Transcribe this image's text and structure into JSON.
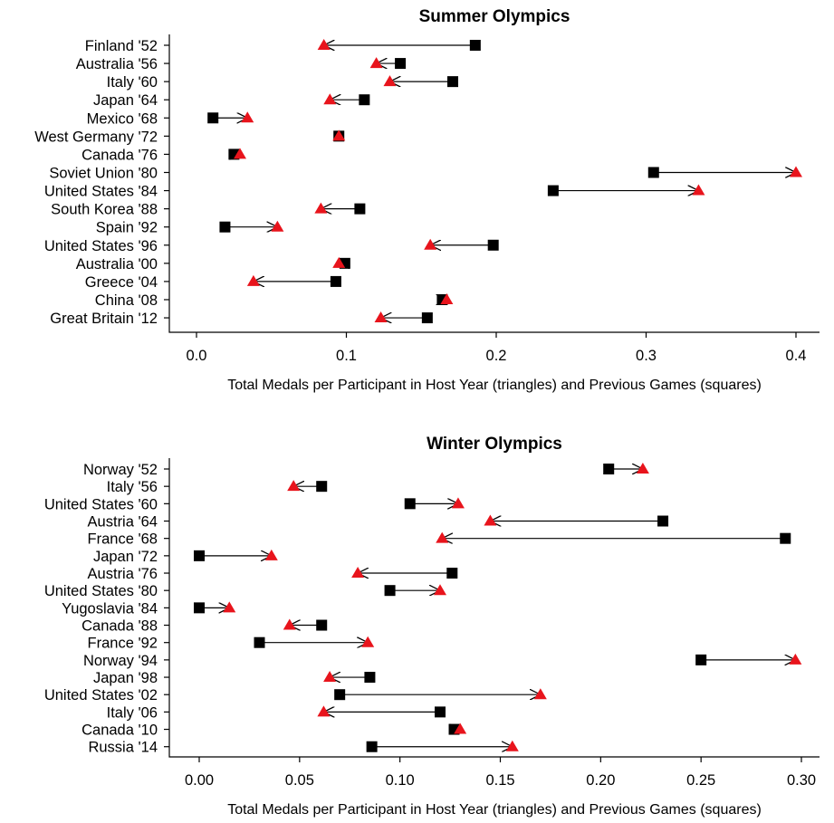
{
  "chart_data": [
    {
      "type": "dot-arrow",
      "title": "Summer Olympics",
      "xlabel": "Total Medals per Participant in Host Year (triangles) and Previous Games (squares)",
      "xlim": [
        0,
        0.4
      ],
      "xticks": [
        "0.0",
        "0.1",
        "0.2",
        "0.3",
        "0.4"
      ],
      "legend_markers": {
        "previous_games": "square",
        "host_year": "triangle"
      },
      "colors": {
        "square": "#000000",
        "triangle": "#e8141c",
        "arrow": "#000000"
      },
      "categories": [
        "Finland '52",
        "Australia '56",
        "Italy '60",
        "Japan '64",
        "Mexico '68",
        "West Germany '72",
        "Canada '76",
        "Soviet Union '80",
        "United States '84",
        "South Korea '88",
        "Spain '92",
        "United States '96",
        "Australia '00",
        "Greece '04",
        "China '08",
        "Great Britain '12"
      ],
      "previous_games": [
        0.186,
        0.136,
        0.171,
        0.112,
        0.011,
        0.095,
        0.025,
        0.305,
        0.238,
        0.109,
        0.019,
        0.198,
        0.099,
        0.093,
        0.164,
        0.154
      ],
      "host_year": [
        0.085,
        0.12,
        0.129,
        0.089,
        0.034,
        0.095,
        0.029,
        0.4,
        0.335,
        0.083,
        0.054,
        0.156,
        0.095,
        0.038,
        0.167,
        0.123
      ]
    },
    {
      "type": "dot-arrow",
      "title": "Winter Olympics",
      "xlabel": "Total Medals per Participant in Host Year (triangles) and Previous Games (squares)",
      "xlim": [
        0,
        0.3
      ],
      "xticks": [
        "0.00",
        "0.05",
        "0.10",
        "0.15",
        "0.20",
        "0.25",
        "0.30"
      ],
      "legend_markers": {
        "previous_games": "square",
        "host_year": "triangle"
      },
      "colors": {
        "square": "#000000",
        "triangle": "#e8141c",
        "arrow": "#000000"
      },
      "categories": [
        "Norway '52",
        "Italy '56",
        "United States '60",
        "Austria '64",
        "France '68",
        "Japan '72",
        "Austria '76",
        "United States '80",
        "Yugoslavia '84",
        "Canada '88",
        "France '92",
        "Norway '94",
        "Japan '98",
        "United States '02",
        "Italy '06",
        "Canada '10",
        "Russia '14"
      ],
      "previous_games": [
        0.204,
        0.061,
        0.105,
        0.231,
        0.292,
        0.0,
        0.126,
        0.095,
        0.0,
        0.061,
        0.03,
        0.25,
        0.085,
        0.07,
        0.12,
        0.127,
        0.086
      ],
      "host_year": [
        0.221,
        0.047,
        0.129,
        0.145,
        0.121,
        0.036,
        0.079,
        0.12,
        0.015,
        0.045,
        0.084,
        0.297,
        0.065,
        0.17,
        0.062,
        0.13,
        0.156
      ]
    }
  ]
}
